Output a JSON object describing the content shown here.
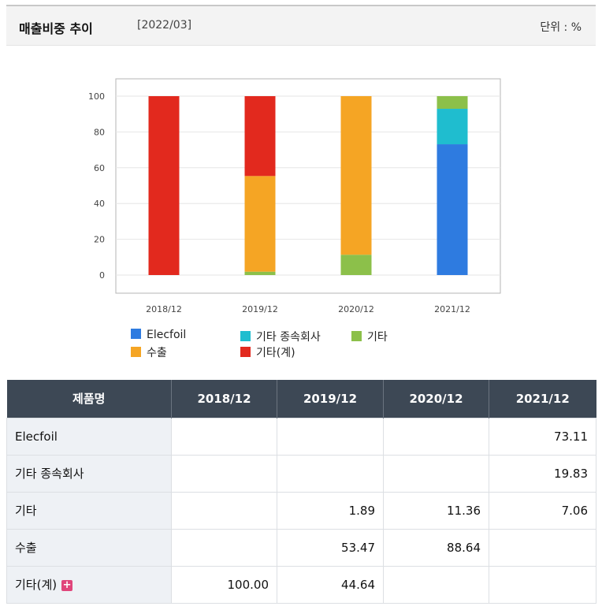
{
  "header": {
    "title": "매출비중 추이",
    "date": "[2022/03]",
    "unit": "단위 : %"
  },
  "chart_data": {
    "type": "bar",
    "stacked": true,
    "categories": [
      "2018/12",
      "2019/12",
      "2020/12",
      "2021/12"
    ],
    "ylim": [
      0,
      100
    ],
    "yticks": [
      0,
      20,
      40,
      60,
      80,
      100
    ],
    "grid": true,
    "legend_position": "bottom",
    "series": [
      {
        "name": "Elecfoil",
        "color": "#2e7be0",
        "values": [
          0,
          0,
          0,
          73.11
        ]
      },
      {
        "name": "기타 종속회사",
        "color": "#1fbdcf",
        "values": [
          0,
          0,
          0,
          19.83
        ]
      },
      {
        "name": "기타",
        "color": "#8cc04a",
        "values": [
          0,
          1.89,
          11.36,
          7.06
        ]
      },
      {
        "name": "수출",
        "color": "#f5a524",
        "values": [
          0,
          53.47,
          88.64,
          0
        ]
      },
      {
        "name": "기타(계)",
        "color": "#e2291e",
        "values": [
          100,
          44.64,
          0,
          0
        ]
      }
    ]
  },
  "table": {
    "columns": [
      "제품명",
      "2018/12",
      "2019/12",
      "2020/12",
      "2021/12"
    ],
    "rows": [
      {
        "name": "Elecfoil",
        "cells": [
          "",
          "",
          "",
          "73.11"
        ]
      },
      {
        "name": "기타 종속회사",
        "cells": [
          "",
          "",
          "",
          "19.83"
        ]
      },
      {
        "name": "기타",
        "cells": [
          "",
          "1.89",
          "11.36",
          "7.06"
        ]
      },
      {
        "name": "수출",
        "cells": [
          "",
          "53.47",
          "88.64",
          ""
        ]
      },
      {
        "name": "기타(계)",
        "cells": [
          "100.00",
          "44.64",
          "",
          ""
        ],
        "expand": "+"
      }
    ]
  }
}
